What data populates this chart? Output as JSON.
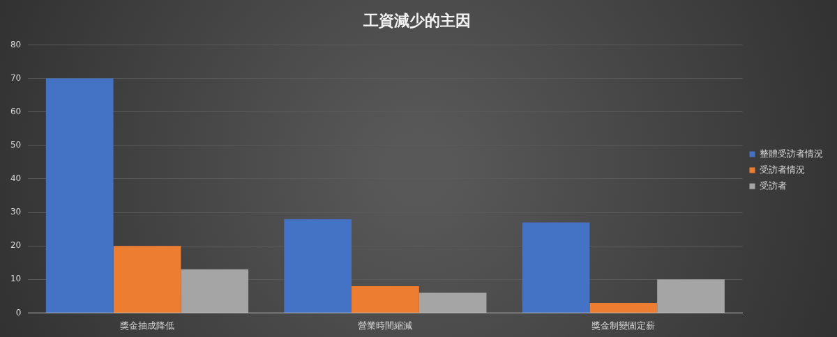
{
  "chart_data": {
    "type": "bar",
    "title": "工資減少的主因",
    "categories": [
      "獎金抽成降低",
      "營業時間縮減",
      "獎金制變固定薪"
    ],
    "series": [
      {
        "name": "整體受訪者情況",
        "color": "#4472c4",
        "values": [
          70,
          28,
          27
        ]
      },
      {
        "name": "受訪者情況",
        "color": "#ed7d31",
        "values": [
          20,
          8,
          3
        ]
      },
      {
        "name": "受訪者",
        "color": "#a5a5a5",
        "values": [
          13,
          6,
          10
        ]
      }
    ],
    "ylim": [
      0,
      80
    ],
    "yticks": [
      0,
      10,
      20,
      30,
      40,
      50,
      60,
      70,
      80
    ],
    "grid": "y",
    "legend": "right"
  }
}
